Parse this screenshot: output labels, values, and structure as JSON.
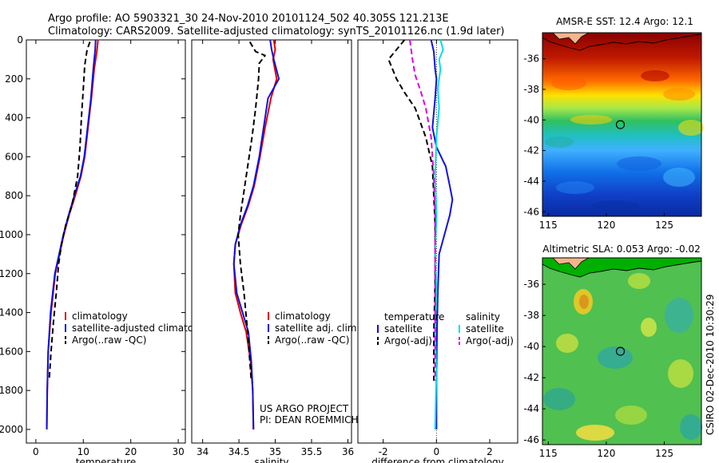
{
  "figure": {
    "title_line1": "Argo profile: AO 5903321_30 24-Nov-2010 20101124_502 40.305S 121.213E",
    "title_line2": "Climatology: CARS2009. Satellite-adjusted climatology: synTS_20101126.nc (1.9d later)",
    "credit_side": "CSIRO 02-Dec-2010 10:30:29",
    "project_line1": "US ARGO PROJECT",
    "project_line2": "PI: DEAN ROEMMICH"
  },
  "colors": {
    "climatology": "#e00000",
    "satellite": "#1010e0",
    "argo": "#000000",
    "sat_sal": "#00e0e0",
    "argo_sal": "#e000e0",
    "land": "#f4b48c",
    "coast": "#00aa00"
  },
  "chart_data": [
    {
      "type": "line",
      "id": "temperature",
      "title": "",
      "xlabel": "temperature",
      "ylabel": "",
      "xlim": [
        -2,
        31.5
      ],
      "ylim": [
        2070,
        0
      ],
      "xticks": [
        0,
        10,
        20,
        30
      ],
      "yticks": [
        0,
        200,
        400,
        600,
        800,
        1000,
        1200,
        1400,
        1600,
        1800,
        2000
      ],
      "legend": [
        "climatology",
        "satellite-adjusted climatology",
        "Argo(..raw -QC)"
      ],
      "series": [
        {
          "name": "climatology",
          "color": "climatology",
          "dash": false,
          "x": [
            13.1,
            12.9,
            12.3,
            11.7,
            11.0,
            10.3,
            9.5,
            8.3,
            7.0,
            5.9,
            5.0,
            4.1,
            3.2,
            2.6,
            2.4,
            2.3
          ],
          "y": [
            0,
            50,
            150,
            300,
            450,
            600,
            700,
            800,
            900,
            1000,
            1100,
            1200,
            1400,
            1600,
            1800,
            2000
          ]
        },
        {
          "name": "satellite-adjusted climatology",
          "color": "satellite",
          "dash": false,
          "x": [
            12.6,
            12.5,
            12.1,
            11.6,
            10.9,
            10.2,
            9.4,
            8.1,
            6.9,
            5.8,
            4.9,
            4.0,
            3.1,
            2.6,
            2.4,
            2.3
          ],
          "y": [
            0,
            50,
            150,
            300,
            450,
            600,
            700,
            800,
            900,
            1000,
            1100,
            1200,
            1400,
            1600,
            1800,
            2000
          ]
        },
        {
          "name": "Argo(..raw -QC)",
          "color": "argo",
          "dash": true,
          "x": [
            11.4,
            10.8,
            10.3,
            10.0,
            9.6,
            9.3,
            8.8,
            7.6,
            6.3,
            5.4,
            4.8,
            4.3,
            3.7,
            3.2,
            2.8
          ],
          "y": [
            10,
            50,
            130,
            250,
            400,
            550,
            700,
            850,
            950,
            1050,
            1150,
            1300,
            1450,
            1600,
            1750
          ]
        }
      ]
    },
    {
      "type": "line",
      "id": "salinity",
      "title": "",
      "xlabel": "salinity",
      "ylabel": "",
      "xlim": [
        33.85,
        36.05
      ],
      "ylim": [
        2070,
        0
      ],
      "xticks": [
        34,
        34.5,
        35,
        35.5,
        36
      ],
      "yticks": [],
      "legend": [
        "climatology",
        "satellite adj. clim.",
        "Argo(..raw -QC)"
      ],
      "series": [
        {
          "name": "climatology",
          "color": "climatology",
          "dash": false,
          "x": [
            34.98,
            35.0,
            34.97,
            35.02,
            34.94,
            34.86,
            34.79,
            34.71,
            34.63,
            34.53,
            34.45,
            34.43,
            34.45,
            34.52,
            34.6,
            34.66,
            34.69,
            34.7
          ],
          "y": [
            0,
            50,
            100,
            200,
            300,
            450,
            600,
            750,
            850,
            950,
            1050,
            1150,
            1300,
            1400,
            1500,
            1650,
            1800,
            2000
          ]
        },
        {
          "name": "satellite adj. clim.",
          "color": "satellite",
          "dash": false,
          "x": [
            34.93,
            34.95,
            34.98,
            35.05,
            34.9,
            34.84,
            34.78,
            34.7,
            34.62,
            34.52,
            34.45,
            34.43,
            34.47,
            34.55,
            34.63,
            34.67,
            34.69,
            34.7
          ],
          "y": [
            0,
            50,
            100,
            200,
            300,
            450,
            600,
            750,
            850,
            950,
            1050,
            1150,
            1300,
            1400,
            1500,
            1650,
            1800,
            2000
          ]
        },
        {
          "name": "Argo(..raw -QC)",
          "color": "argo",
          "dash": true,
          "x": [
            34.65,
            34.73,
            34.86,
            34.78,
            34.77,
            34.73,
            34.68,
            34.62,
            34.56,
            34.52,
            34.49,
            34.52,
            34.57,
            34.62,
            34.67
          ],
          "y": [
            10,
            60,
            80,
            120,
            200,
            350,
            500,
            650,
            800,
            900,
            1000,
            1150,
            1300,
            1500,
            1750
          ]
        }
      ]
    },
    {
      "type": "line",
      "id": "difference",
      "title": "",
      "xlabel": "difference from climatology",
      "ylabel": "",
      "xlim": [
        -2.95,
        3.05
      ],
      "ylim": [
        2070,
        0
      ],
      "xticks": [
        -2,
        0,
        2
      ],
      "yticks": [],
      "legend_header": [
        "temperature",
        "salinity"
      ],
      "legend": [
        "satellite",
        "Argo(-adj)",
        "satellite",
        "Argo(-adj)"
      ],
      "series": [
        {
          "name": "temperature satellite",
          "color": "satellite",
          "dash": false,
          "x": [
            -0.2,
            -0.1,
            -0.05,
            0.0,
            -0.05,
            -0.15,
            0.0,
            0.35,
            0.5,
            0.6,
            0.5,
            0.3,
            0.1,
            0.05,
            0.02,
            0.0,
            0.0
          ],
          "y": [
            0,
            60,
            150,
            200,
            300,
            450,
            550,
            650,
            750,
            820,
            900,
            1000,
            1100,
            1300,
            1500,
            1750,
            2000
          ]
        },
        {
          "name": "temperature Argo(-adj)",
          "color": "argo",
          "dash": true,
          "x": [
            -1.2,
            -1.8,
            -1.5,
            -1.2,
            -0.8,
            -0.4,
            -0.15,
            -0.1,
            -0.05,
            -0.05,
            -0.05,
            -0.1,
            -0.1
          ],
          "y": [
            0,
            100,
            200,
            270,
            350,
            500,
            650,
            800,
            950,
            1100,
            1250,
            1500,
            1750
          ]
        },
        {
          "name": "salinity satellite",
          "color": "sat_sal",
          "dash": false,
          "x": [
            0.15,
            0.25,
            0.1,
            0.15,
            0.05,
            0.1,
            0.0,
            -0.05,
            0.0,
            -0.05,
            0.0,
            -0.05,
            0.0,
            -0.05
          ],
          "y": [
            0,
            50,
            100,
            150,
            250,
            350,
            500,
            700,
            900,
            1100,
            1300,
            1500,
            1700,
            2000
          ]
        },
        {
          "name": "salinity Argo(-adj)",
          "color": "argo_sal",
          "dash": true,
          "x": [
            -1.0,
            -0.9,
            -0.8,
            -0.6,
            -0.4,
            -0.2,
            -0.1,
            -0.05,
            -0.05,
            -0.05,
            -0.05,
            -0.05
          ],
          "y": [
            0,
            100,
            180,
            260,
            350,
            500,
            700,
            900,
            1100,
            1300,
            1500,
            1750
          ]
        }
      ]
    },
    {
      "type": "heatmap",
      "id": "sst_map",
      "title": "AMSR-E SST: 12.4 Argo: 12.1",
      "xticks": [
        115,
        120,
        125
      ],
      "yticks": [
        -36,
        -38,
        -40,
        -42,
        -44,
        -46
      ],
      "xlim": [
        114.5,
        128.2
      ],
      "ylim": [
        -46.3,
        -34.3
      ],
      "marker": {
        "lon": 121.213,
        "lat": -40.305
      }
    },
    {
      "type": "heatmap",
      "id": "sla_map",
      "title": "Altimetric SLA: 0.053 Argo: -0.02",
      "xticks": [
        115,
        120,
        125
      ],
      "yticks": [
        -36,
        -38,
        -40,
        -42,
        -44,
        -46
      ],
      "xlim": [
        114.5,
        128.2
      ],
      "ylim": [
        -46.3,
        -34.3
      ],
      "marker": {
        "lon": 121.213,
        "lat": -40.305
      }
    }
  ]
}
